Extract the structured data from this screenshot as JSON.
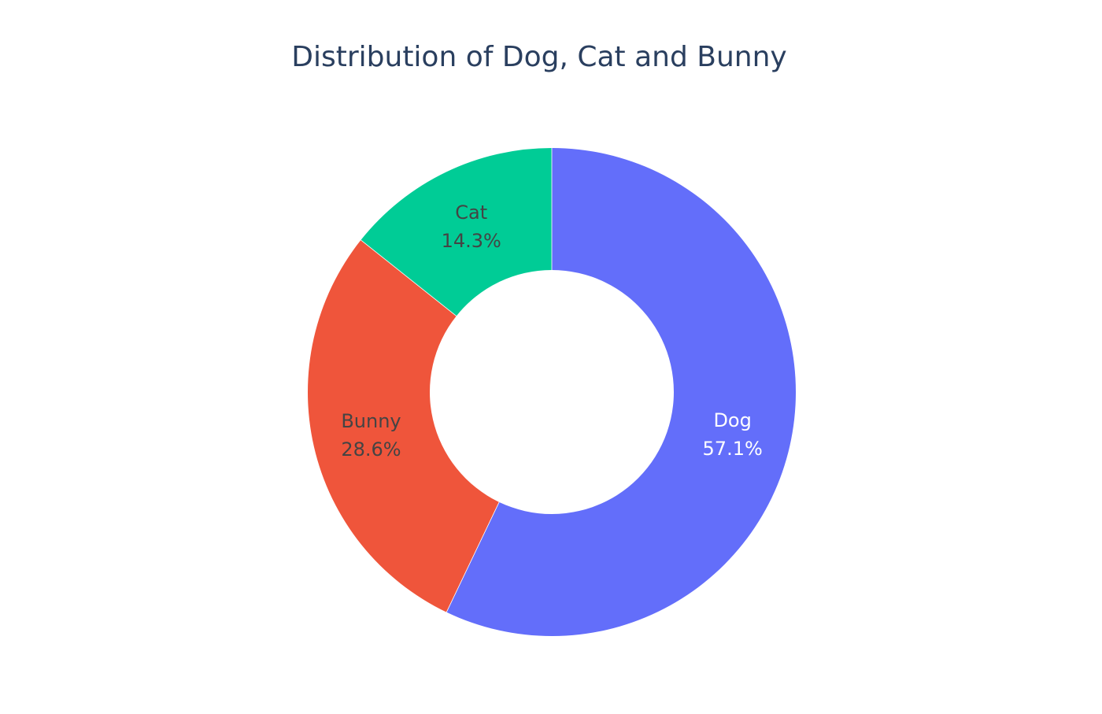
{
  "chart_data": {
    "type": "pie",
    "hole": true,
    "title": "Distribution of Dog, Cat and Bunny",
    "direction": "clockwise",
    "start": "top",
    "sort": "descending",
    "slices": [
      {
        "label": "Dog",
        "value": 57.1,
        "percent_label": "57.1%",
        "color": "#636efa",
        "text_color": "#ffffff"
      },
      {
        "label": "Bunny",
        "value": 28.6,
        "percent_label": "28.6%",
        "color": "#ef553b",
        "text_color": "#444444"
      },
      {
        "label": "Cat",
        "value": 14.3,
        "percent_label": "14.3%",
        "color": "#00cc96",
        "text_color": "#444444"
      }
    ],
    "legend": "none"
  }
}
